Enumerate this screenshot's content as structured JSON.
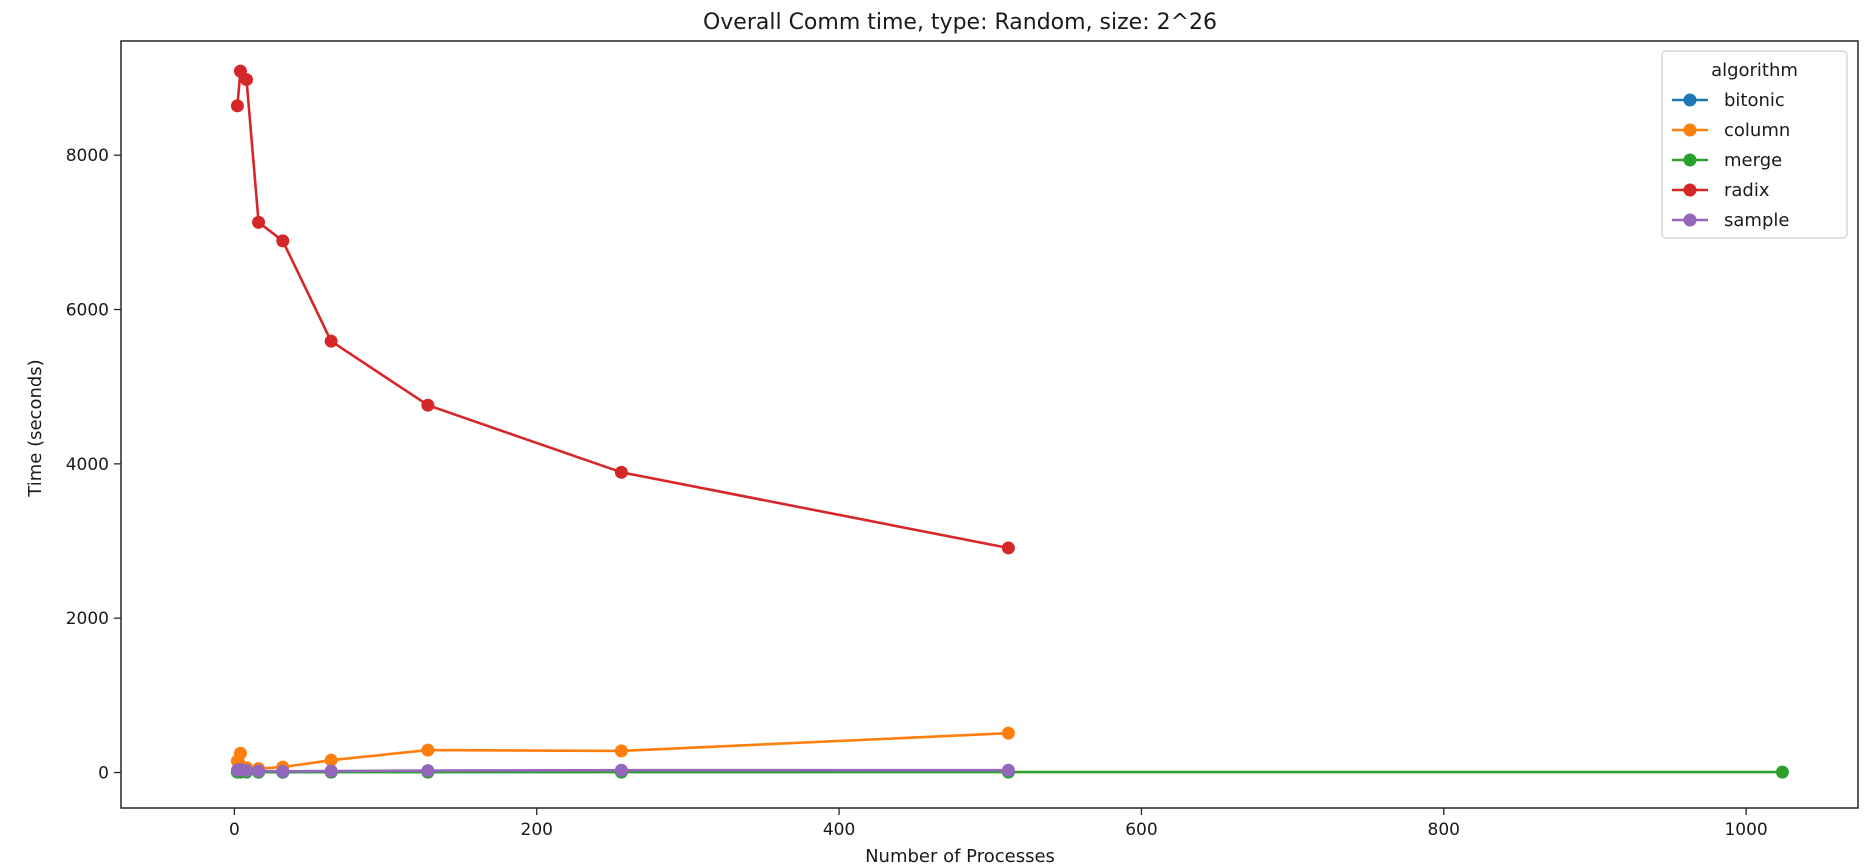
{
  "chart_data": {
    "type": "line",
    "title": "Overall Comm time, type: Random, size: 2^26",
    "xlabel": "Number of Processes",
    "ylabel": "Time (seconds)",
    "xlim": [
      -75,
      1074
    ],
    "ylim": [
      -460,
      9480
    ],
    "xticks": [
      0,
      200,
      400,
      600,
      800,
      1000
    ],
    "yticks": [
      0,
      2000,
      4000,
      6000,
      8000
    ],
    "grid": false,
    "legend": {
      "title": "algorithm",
      "placement": "top-right"
    },
    "series": [
      {
        "name": "bitonic",
        "color": "#1f77b4",
        "x": [
          2,
          4,
          8,
          16,
          32,
          64,
          128,
          256,
          512
        ],
        "y": [
          10,
          12,
          8,
          5,
          4,
          6,
          7,
          9,
          10
        ]
      },
      {
        "name": "column",
        "color": "#ff7f0e",
        "x": [
          2,
          4,
          8,
          16,
          32,
          64,
          128,
          256,
          512
        ],
        "y": [
          150,
          250,
          60,
          50,
          70,
          160,
          290,
          280,
          510
        ]
      },
      {
        "name": "merge",
        "color": "#2ca02c",
        "x": [
          2,
          4,
          8,
          16,
          32,
          64,
          128,
          256,
          512,
          1024
        ],
        "y": [
          5,
          5,
          5,
          5,
          5,
          5,
          5,
          5,
          5,
          5
        ]
      },
      {
        "name": "radix",
        "color": "#d62728",
        "x": [
          2,
          4,
          8,
          16,
          32,
          64,
          128,
          256,
          512
        ],
        "y": [
          8640,
          9090,
          8980,
          7130,
          6890,
          5590,
          4760,
          3890,
          2910
        ]
      },
      {
        "name": "sample",
        "color": "#9467bd",
        "x": [
          2,
          4,
          8,
          16,
          32,
          64,
          128,
          256,
          512
        ],
        "y": [
          30,
          40,
          25,
          20,
          15,
          20,
          25,
          30,
          30
        ]
      }
    ]
  }
}
